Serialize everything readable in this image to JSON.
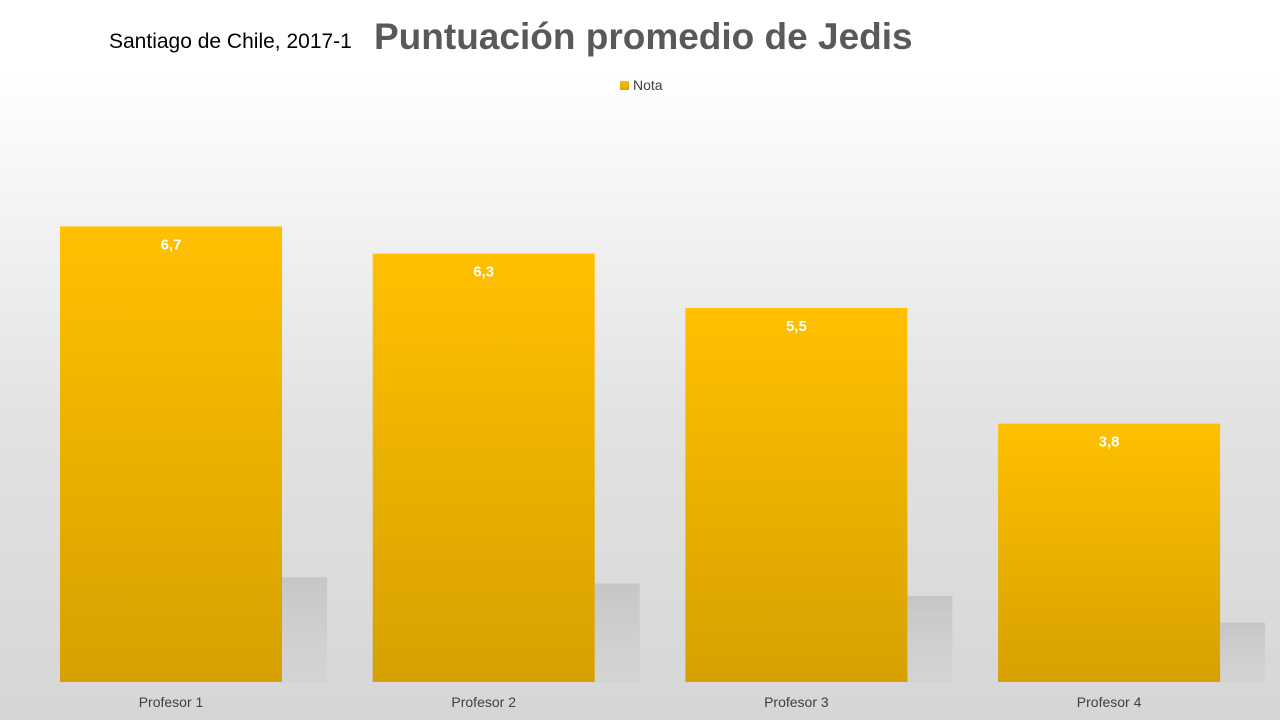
{
  "chart_data": {
    "type": "bar",
    "subtitle": "Santiago de Chile, 2017-1",
    "title": "Puntuación promedio de Jedis",
    "categories": [
      "Profesor 1",
      "Profesor 2",
      "Profesor 3",
      "Profesor 4"
    ],
    "series": [
      {
        "name": "Nota",
        "values": [
          6.7,
          6.3,
          5.5,
          3.8
        ],
        "labels": [
          "6,7",
          "6,3",
          "5,5",
          "3,8"
        ]
      }
    ],
    "ylim": [
      0,
      9
    ],
    "grid": false,
    "legend_position": "top",
    "xlabel": "",
    "ylabel": "",
    "colors": {
      "bar_top": "#FFC000",
      "bar_bottom": "#D6A100",
      "label": "#FFFFFF",
      "axis_text": "#404040"
    }
  }
}
